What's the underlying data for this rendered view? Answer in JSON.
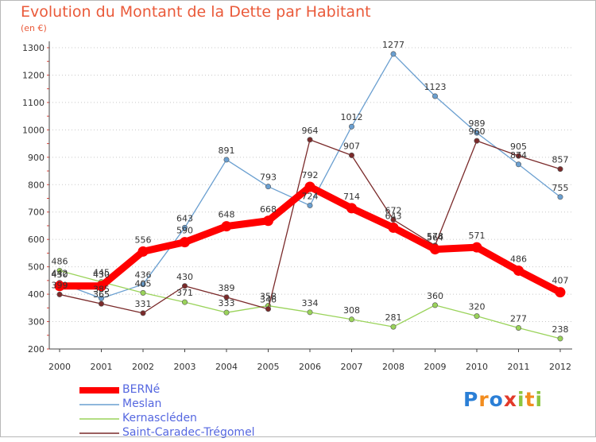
{
  "chart_data": {
    "type": "line",
    "title": "Evolution du Montant de la Dette par Habitant",
    "subtitle": "(en €)",
    "xlabel": "",
    "ylabel": "",
    "x": [
      "2000",
      "2001",
      "2002",
      "2003",
      "2004",
      "2005",
      "2006",
      "2007",
      "2008",
      "2009",
      "2010",
      "2011",
      "2012"
    ],
    "ylim": [
      200,
      1300
    ],
    "yticks": [
      200,
      300,
      400,
      500,
      600,
      700,
      800,
      900,
      1000,
      1100,
      1200,
      1300
    ],
    "grid": "dotted-horizontal",
    "legend_position": "bottom-left",
    "series": [
      {
        "name": "BERNé",
        "color": "#ff0000",
        "values": [
          430,
          430,
          556,
          590,
          648,
          668,
          792,
          714,
          643,
          564,
          571,
          486,
          407
        ]
      },
      {
        "name": "Meslan",
        "color": "#6a9fd0",
        "values": [
          442,
          385,
          436,
          643,
          891,
          793,
          724,
          1012,
          1277,
          1123,
          989,
          874,
          755
        ]
      },
      {
        "name": "Kernascléden",
        "color": "#9ad35a",
        "values": [
          486,
          445,
          405,
          371,
          333,
          358,
          334,
          308,
          281,
          360,
          320,
          277,
          238
        ]
      },
      {
        "name": "Saint-Caradec-Trégomel",
        "color": "#7a2a2a",
        "values": [
          399,
          365,
          331,
          430,
          389,
          346,
          964,
          907,
          672,
          578,
          960,
          905,
          857
        ]
      }
    ]
  },
  "logo": {
    "letters": [
      "P",
      "r",
      "o",
      "x",
      "i",
      "t",
      "i"
    ],
    "colors": [
      "#2b7fd6",
      "#f28c1e",
      "#2b7fd6",
      "#e23a2a",
      "#8cc63f",
      "#f28c1e",
      "#8cc63f"
    ]
  }
}
